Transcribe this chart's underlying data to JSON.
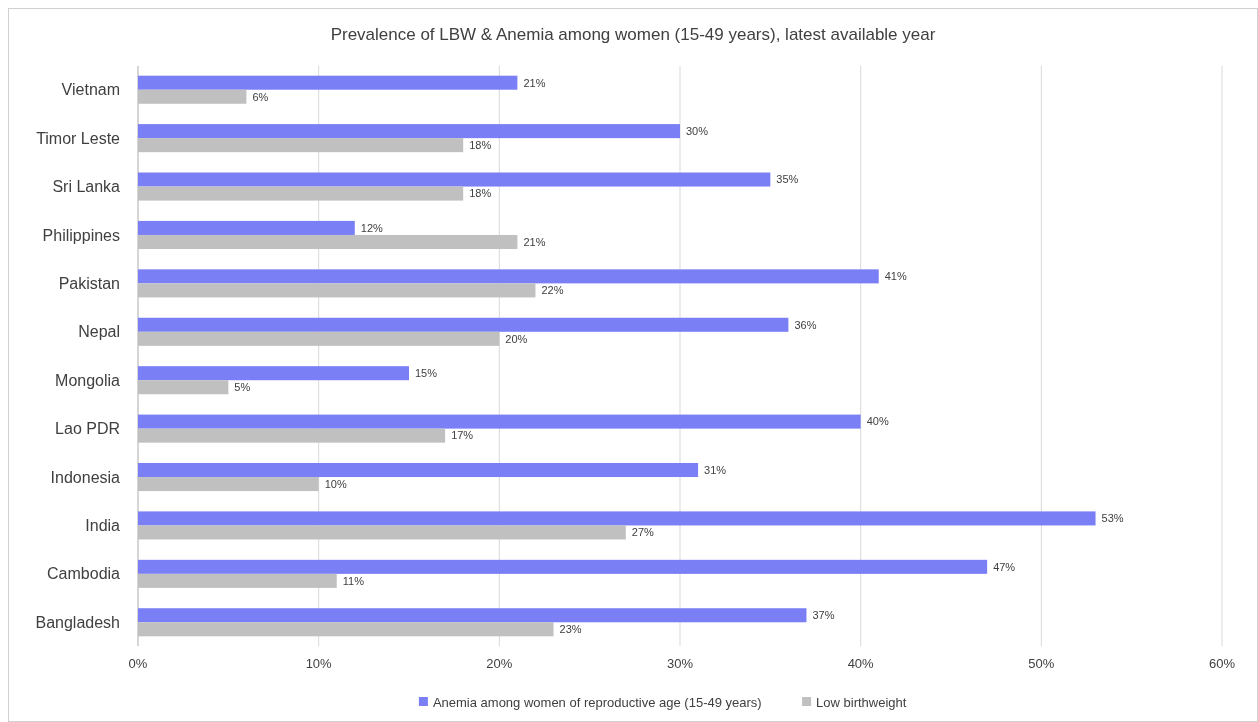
{
  "chart_data": {
    "type": "bar",
    "orientation": "horizontal",
    "title": "Prevalence of LBW & Anemia among women (15-49 years), latest available year",
    "categories": [
      "Vietnam",
      "Timor Leste",
      "Sri Lanka",
      "Philippines",
      "Pakistan",
      "Nepal",
      "Mongolia",
      "Lao PDR",
      "Indonesia",
      "India",
      "Cambodia",
      "Bangladesh"
    ],
    "series": [
      {
        "name": "Anemia among women of reproductive age (15-49 years)",
        "color": "#7b7ff5",
        "values": [
          21,
          30,
          35,
          12,
          41,
          36,
          15,
          40,
          31,
          53,
          47,
          37
        ],
        "value_labels": [
          "21%",
          "30%",
          "35%",
          "12%",
          "41%",
          "36%",
          "15%",
          "40%",
          "31%",
          "53%",
          "47%",
          "37%"
        ]
      },
      {
        "name": "Low birthweight",
        "color": "#c0c0c0",
        "values": [
          6,
          18,
          18,
          21,
          22,
          20,
          5,
          17,
          10,
          27,
          11,
          23
        ],
        "value_labels": [
          "6%",
          "18%",
          "18%",
          "21%",
          "22%",
          "20%",
          "5%",
          "17%",
          "10%",
          "27%",
          "11%",
          "23%"
        ]
      }
    ],
    "xlim": [
      0,
      60
    ],
    "xticks": [
      {
        "value": 0,
        "label": "0%"
      },
      {
        "value": 10,
        "label": "10%"
      },
      {
        "value": 20,
        "label": "20%"
      },
      {
        "value": 30,
        "label": "30%"
      },
      {
        "value": 40,
        "label": "40%"
      },
      {
        "value": 50,
        "label": "50%"
      },
      {
        "value": 60,
        "label": "60%"
      }
    ],
    "grid": "x",
    "legend": "bottom"
  }
}
